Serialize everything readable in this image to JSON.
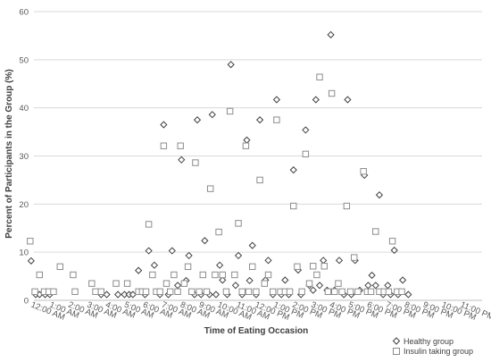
{
  "chart_data": {
    "type": "scatter",
    "title": "",
    "xlabel": "Time of Eating Occasion",
    "ylabel": "Percent of Participants in the Group (%)",
    "ylim": [
      0,
      60
    ],
    "y_ticks": [
      0,
      10,
      20,
      30,
      40,
      50,
      60
    ],
    "x_range": [
      0,
      24
    ],
    "categories": [
      "12:00 AM",
      "1:00 AM",
      "2:00 AM",
      "3:00 AM",
      "4:00 AM",
      "5:00 AM",
      "6:00 AM",
      "7:00 AM",
      "8:00 AM",
      "9:00 AM",
      "10:00 AM",
      "11:00 AM",
      "12:00 PM",
      "1:00 PM",
      "2:00 PM",
      "3:00 PM",
      "4:00 PM",
      "5:00 PM",
      "6:00 PM",
      "7:00 PM",
      "8:00 PM",
      "9:00 PM",
      "10:00 PM",
      "11:00 PM"
    ],
    "grid": "horizontal",
    "legend_position": "bottom-right",
    "series": [
      {
        "name": "Healthy group",
        "marker": "diamond",
        "points": [
          [
            -0.15,
            8.2
          ],
          [
            0.1,
            1.2
          ],
          [
            0.3,
            1.2
          ],
          [
            0.6,
            1.2
          ],
          [
            0.85,
            1.2
          ],
          [
            3.6,
            1.2
          ],
          [
            3.9,
            1.2
          ],
          [
            4.5,
            1.2
          ],
          [
            4.85,
            1.2
          ],
          [
            5.1,
            1.2
          ],
          [
            5.3,
            1.2
          ],
          [
            5.6,
            6.2
          ],
          [
            5.95,
            1.2
          ],
          [
            6.15,
            10.3
          ],
          [
            6.45,
            7.3
          ],
          [
            6.75,
            1.2
          ],
          [
            6.95,
            36.5
          ],
          [
            7.2,
            1.2
          ],
          [
            7.4,
            10.3
          ],
          [
            7.7,
            3.1
          ],
          [
            7.9,
            29.2
          ],
          [
            8.15,
            4.1
          ],
          [
            8.3,
            9.3
          ],
          [
            8.6,
            1.2
          ],
          [
            8.75,
            37.5
          ],
          [
            8.95,
            1.2
          ],
          [
            9.15,
            12.4
          ],
          [
            9.4,
            1.2
          ],
          [
            9.55,
            38.6
          ],
          [
            9.75,
            1.2
          ],
          [
            9.95,
            7.3
          ],
          [
            10.1,
            4.2
          ],
          [
            10.35,
            1.2
          ],
          [
            10.55,
            49.0
          ],
          [
            10.8,
            3.1
          ],
          [
            10.95,
            9.3
          ],
          [
            11.15,
            1.2
          ],
          [
            11.4,
            33.3
          ],
          [
            11.55,
            4.1
          ],
          [
            11.7,
            11.4
          ],
          [
            11.9,
            1.2
          ],
          [
            12.1,
            37.5
          ],
          [
            12.4,
            4.2
          ],
          [
            12.55,
            8.3
          ],
          [
            12.8,
            1.2
          ],
          [
            13.0,
            41.7
          ],
          [
            13.25,
            1.2
          ],
          [
            13.45,
            4.2
          ],
          [
            13.65,
            1.2
          ],
          [
            13.9,
            27.1
          ],
          [
            14.15,
            6.3
          ],
          [
            14.3,
            1.2
          ],
          [
            14.55,
            35.4
          ],
          [
            14.75,
            3.1
          ],
          [
            14.95,
            2.1
          ],
          [
            15.1,
            41.7
          ],
          [
            15.3,
            3.1
          ],
          [
            15.5,
            8.3
          ],
          [
            15.7,
            2.1
          ],
          [
            15.9,
            55.2
          ],
          [
            16.1,
            2.1
          ],
          [
            16.35,
            8.3
          ],
          [
            16.6,
            1.2
          ],
          [
            16.8,
            41.7
          ],
          [
            17.0,
            1.2
          ],
          [
            17.2,
            8.3
          ],
          [
            17.45,
            2.1
          ],
          [
            17.7,
            26.0
          ],
          [
            17.9,
            3.1
          ],
          [
            18.1,
            5.2
          ],
          [
            18.3,
            3.1
          ],
          [
            18.5,
            21.9
          ],
          [
            18.7,
            1.2
          ],
          [
            18.95,
            3.1
          ],
          [
            19.1,
            1.2
          ],
          [
            19.3,
            10.4
          ],
          [
            19.5,
            1.2
          ],
          [
            19.75,
            4.2
          ],
          [
            20.05,
            1.2
          ]
        ]
      },
      {
        "name": "Insulin taking group",
        "marker": "square",
        "points": [
          [
            -0.2,
            12.3
          ],
          [
            0.05,
            1.8
          ],
          [
            0.3,
            5.3
          ],
          [
            0.55,
            1.8
          ],
          [
            0.8,
            1.8
          ],
          [
            1.05,
            1.8
          ],
          [
            1.4,
            7.0
          ],
          [
            2.1,
            5.3
          ],
          [
            2.2,
            1.8
          ],
          [
            3.1,
            3.5
          ],
          [
            3.3,
            1.8
          ],
          [
            3.6,
            1.8
          ],
          [
            4.4,
            3.5
          ],
          [
            5.0,
            3.5
          ],
          [
            5.6,
            1.8
          ],
          [
            5.8,
            1.8
          ],
          [
            6.0,
            1.8
          ],
          [
            6.15,
            15.8
          ],
          [
            6.35,
            5.3
          ],
          [
            6.55,
            1.8
          ],
          [
            6.75,
            1.8
          ],
          [
            6.95,
            32.1
          ],
          [
            7.1,
            3.5
          ],
          [
            7.3,
            1.8
          ],
          [
            7.5,
            5.3
          ],
          [
            7.7,
            1.8
          ],
          [
            7.85,
            32.1
          ],
          [
            8.05,
            3.5
          ],
          [
            8.25,
            7.0
          ],
          [
            8.45,
            1.8
          ],
          [
            8.65,
            28.6
          ],
          [
            8.85,
            1.8
          ],
          [
            9.05,
            5.3
          ],
          [
            9.25,
            1.8
          ],
          [
            9.45,
            23.2
          ],
          [
            9.7,
            5.3
          ],
          [
            9.9,
            14.2
          ],
          [
            10.1,
            5.3
          ],
          [
            10.3,
            1.8
          ],
          [
            10.5,
            39.3
          ],
          [
            10.75,
            5.3
          ],
          [
            10.95,
            16.0
          ],
          [
            11.15,
            1.8
          ],
          [
            11.35,
            32.1
          ],
          [
            11.5,
            1.8
          ],
          [
            11.7,
            7.0
          ],
          [
            11.9,
            1.8
          ],
          [
            12.1,
            25.0
          ],
          [
            12.35,
            3.5
          ],
          [
            12.55,
            5.3
          ],
          [
            12.8,
            1.8
          ],
          [
            13.0,
            37.5
          ],
          [
            13.2,
            1.8
          ],
          [
            13.45,
            1.8
          ],
          [
            13.7,
            1.8
          ],
          [
            13.9,
            19.6
          ],
          [
            14.1,
            7.0
          ],
          [
            14.35,
            1.8
          ],
          [
            14.55,
            30.4
          ],
          [
            14.75,
            3.5
          ],
          [
            14.95,
            7.1
          ],
          [
            15.15,
            5.3
          ],
          [
            15.3,
            46.4
          ],
          [
            15.55,
            7.1
          ],
          [
            15.75,
            1.8
          ],
          [
            15.95,
            43.0
          ],
          [
            16.1,
            1.8
          ],
          [
            16.3,
            3.5
          ],
          [
            16.5,
            1.8
          ],
          [
            16.75,
            19.6
          ],
          [
            16.95,
            1.8
          ],
          [
            17.15,
            8.9
          ],
          [
            17.35,
            1.8
          ],
          [
            17.65,
            26.8
          ],
          [
            17.85,
            1.8
          ],
          [
            18.05,
            1.8
          ],
          [
            18.3,
            14.3
          ],
          [
            18.5,
            1.8
          ],
          [
            18.75,
            1.8
          ],
          [
            19.0,
            1.8
          ],
          [
            19.2,
            12.3
          ],
          [
            19.45,
            1.8
          ],
          [
            19.7,
            1.8
          ]
        ]
      }
    ]
  }
}
